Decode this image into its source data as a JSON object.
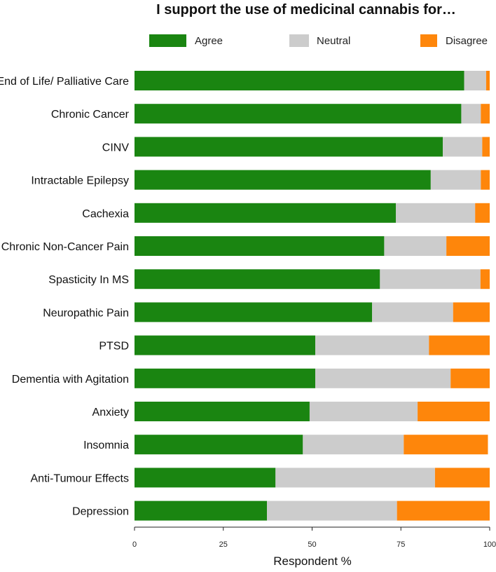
{
  "chart_data": {
    "type": "bar",
    "orientation": "horizontal",
    "stacked": true,
    "title": "I support the use of medicinal cannabis for…",
    "xlabel": "Respondent %",
    "ylabel": "",
    "xlim": [
      0,
      100
    ],
    "xticks": [
      "0",
      "25",
      "50",
      "75",
      "100"
    ],
    "legend_position": "top",
    "categories": [
      "End of Life/ Palliative Care",
      "Chronic Cancer",
      "CINV",
      "Intractable Epilepsy",
      "Cachexia",
      "Chronic Non-Cancer Pain",
      "Spasticity In MS",
      "Neuropathic Pain",
      "PTSD",
      "Dementia with Agitation",
      "Anxiety",
      "Insomnia",
      "Anti-Tumour Effects",
      "Depression"
    ],
    "series": [
      {
        "name": "Agree",
        "color": "#1a8511",
        "values": [
          92.8,
          92.0,
          86.8,
          83.4,
          73.6,
          70.3,
          69.1,
          66.9,
          50.9,
          50.9,
          49.3,
          47.4,
          39.7,
          37.3
        ]
      },
      {
        "name": "Neutral",
        "color": "#cccccc",
        "values": [
          6.2,
          5.5,
          11.1,
          14.1,
          22.3,
          17.5,
          28.3,
          22.8,
          32.0,
          38.1,
          30.4,
          28.4,
          44.9,
          36.6
        ]
      },
      {
        "name": "Disagree",
        "color": "#fe860b",
        "values": [
          1.0,
          2.5,
          2.1,
          2.5,
          4.1,
          12.2,
          2.6,
          10.3,
          17.1,
          11.0,
          20.3,
          23.7,
          15.4,
          26.1
        ]
      }
    ]
  }
}
